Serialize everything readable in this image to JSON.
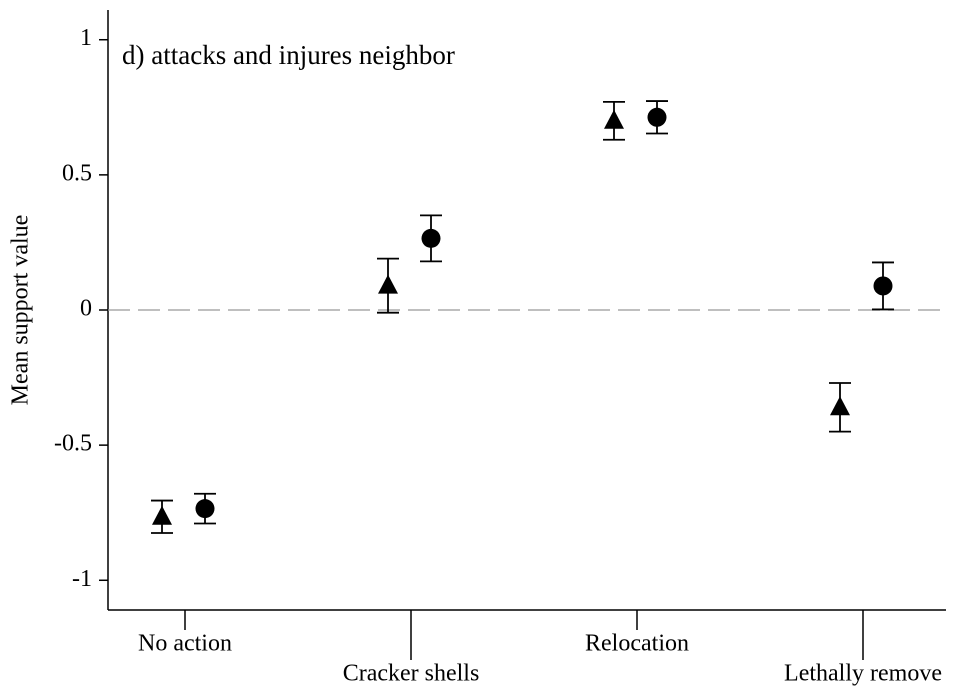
{
  "chart_data": {
    "type": "errorbar",
    "title": "d) attacks and injures neighbor",
    "ylabel": "Mean support value",
    "categories": [
      "No action",
      "Cracker shells",
      "Relocation",
      "Lethally remove"
    ],
    "series": [
      {
        "marker": "triangle",
        "color": "#000000",
        "values": [
          -0.765,
          0.09,
          0.7,
          -0.36
        ],
        "errors": [
          0.06,
          0.1,
          0.07,
          0.09
        ]
      },
      {
        "marker": "circle",
        "color": "#000000",
        "values": [
          -0.735,
          0.265,
          0.713,
          0.089
        ],
        "errors": [
          0.055,
          0.085,
          0.06,
          0.087
        ]
      }
    ],
    "ylim": [
      -1.11,
      1.11
    ],
    "yticks": [
      {
        "value": 1,
        "label": "1"
      },
      0.5,
      0,
      -0.5,
      -1
    ],
    "reference_line": 0
  }
}
